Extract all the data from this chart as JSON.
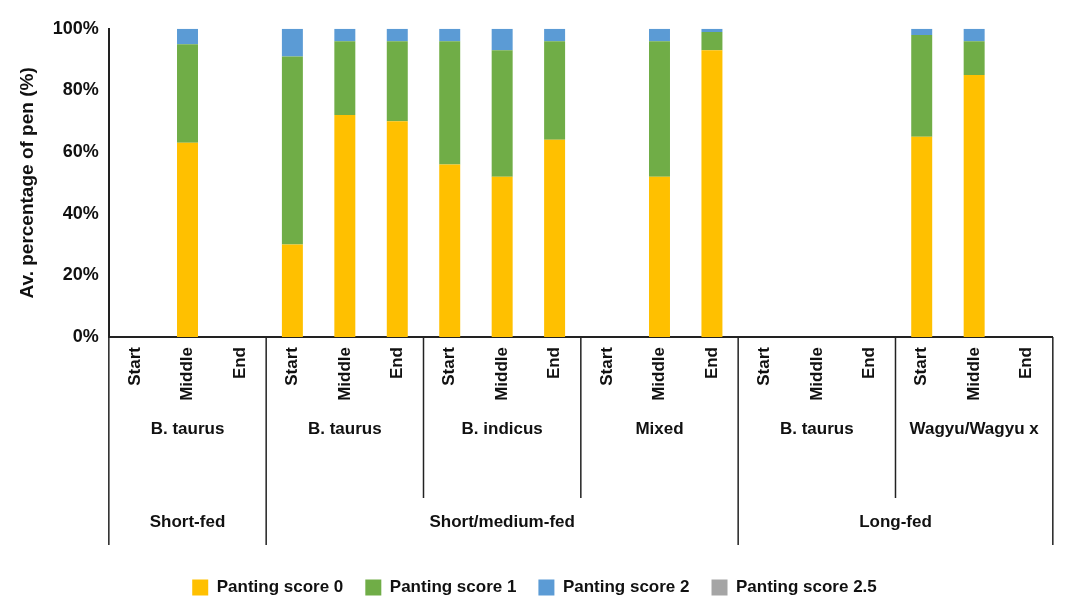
{
  "chart_data": {
    "type": "bar",
    "stacked": true,
    "ylabel": "Av. percentage of pen (%)",
    "categories": [
      "Start",
      "Middle",
      "End",
      "Start",
      "Middle",
      "End",
      "Start",
      "Middle",
      "End",
      "Start",
      "Middle",
      "End",
      "Start",
      "Middle",
      "End",
      "Start",
      "Middle",
      "End"
    ],
    "annotations": [
      "B. taurus",
      "B. taurus",
      "B. indicus",
      "Mixed",
      "B. taurus",
      "Wagyu/Wagyu x",
      "Short-fed",
      "Short/medium-fed",
      "Long-fed"
    ],
    "series": [
      {
        "name": "Panting score 0",
        "color": "#ffc000",
        "values": [
          null,
          63,
          null,
          30,
          72,
          70,
          56,
          52,
          64,
          null,
          52,
          93,
          null,
          null,
          null,
          65,
          85,
          null
        ]
      },
      {
        "name": "Panting score 1",
        "color": "#70ad47",
        "values": [
          null,
          32,
          null,
          61,
          24,
          26,
          40,
          41,
          32,
          null,
          44,
          6,
          null,
          null,
          null,
          33,
          11,
          null
        ]
      },
      {
        "name": "Panting score 2",
        "color": "#5b9bd5",
        "values": [
          null,
          5,
          null,
          9,
          4,
          4,
          4,
          7,
          4,
          null,
          4,
          1,
          null,
          null,
          null,
          2,
          4,
          null
        ]
      },
      {
        "name": "Panting score 2.5",
        "color": "#a5a5a5",
        "values": [
          null,
          null,
          null,
          null,
          null,
          null,
          null,
          null,
          null,
          null,
          null,
          null,
          null,
          null,
          null,
          null,
          null,
          null
        ]
      }
    ],
    "ylim": [
      0,
      100
    ],
    "yticks": [
      {
        "value": 0,
        "label": "0%"
      },
      {
        "value": 20,
        "label": "20%"
      },
      {
        "value": 40,
        "label": "40%"
      },
      {
        "value": 60,
        "label": "60%"
      },
      {
        "value": 80,
        "label": "80%"
      },
      {
        "value": 100,
        "label": "100%"
      }
    ],
    "grid": false,
    "legend": "bottom"
  }
}
